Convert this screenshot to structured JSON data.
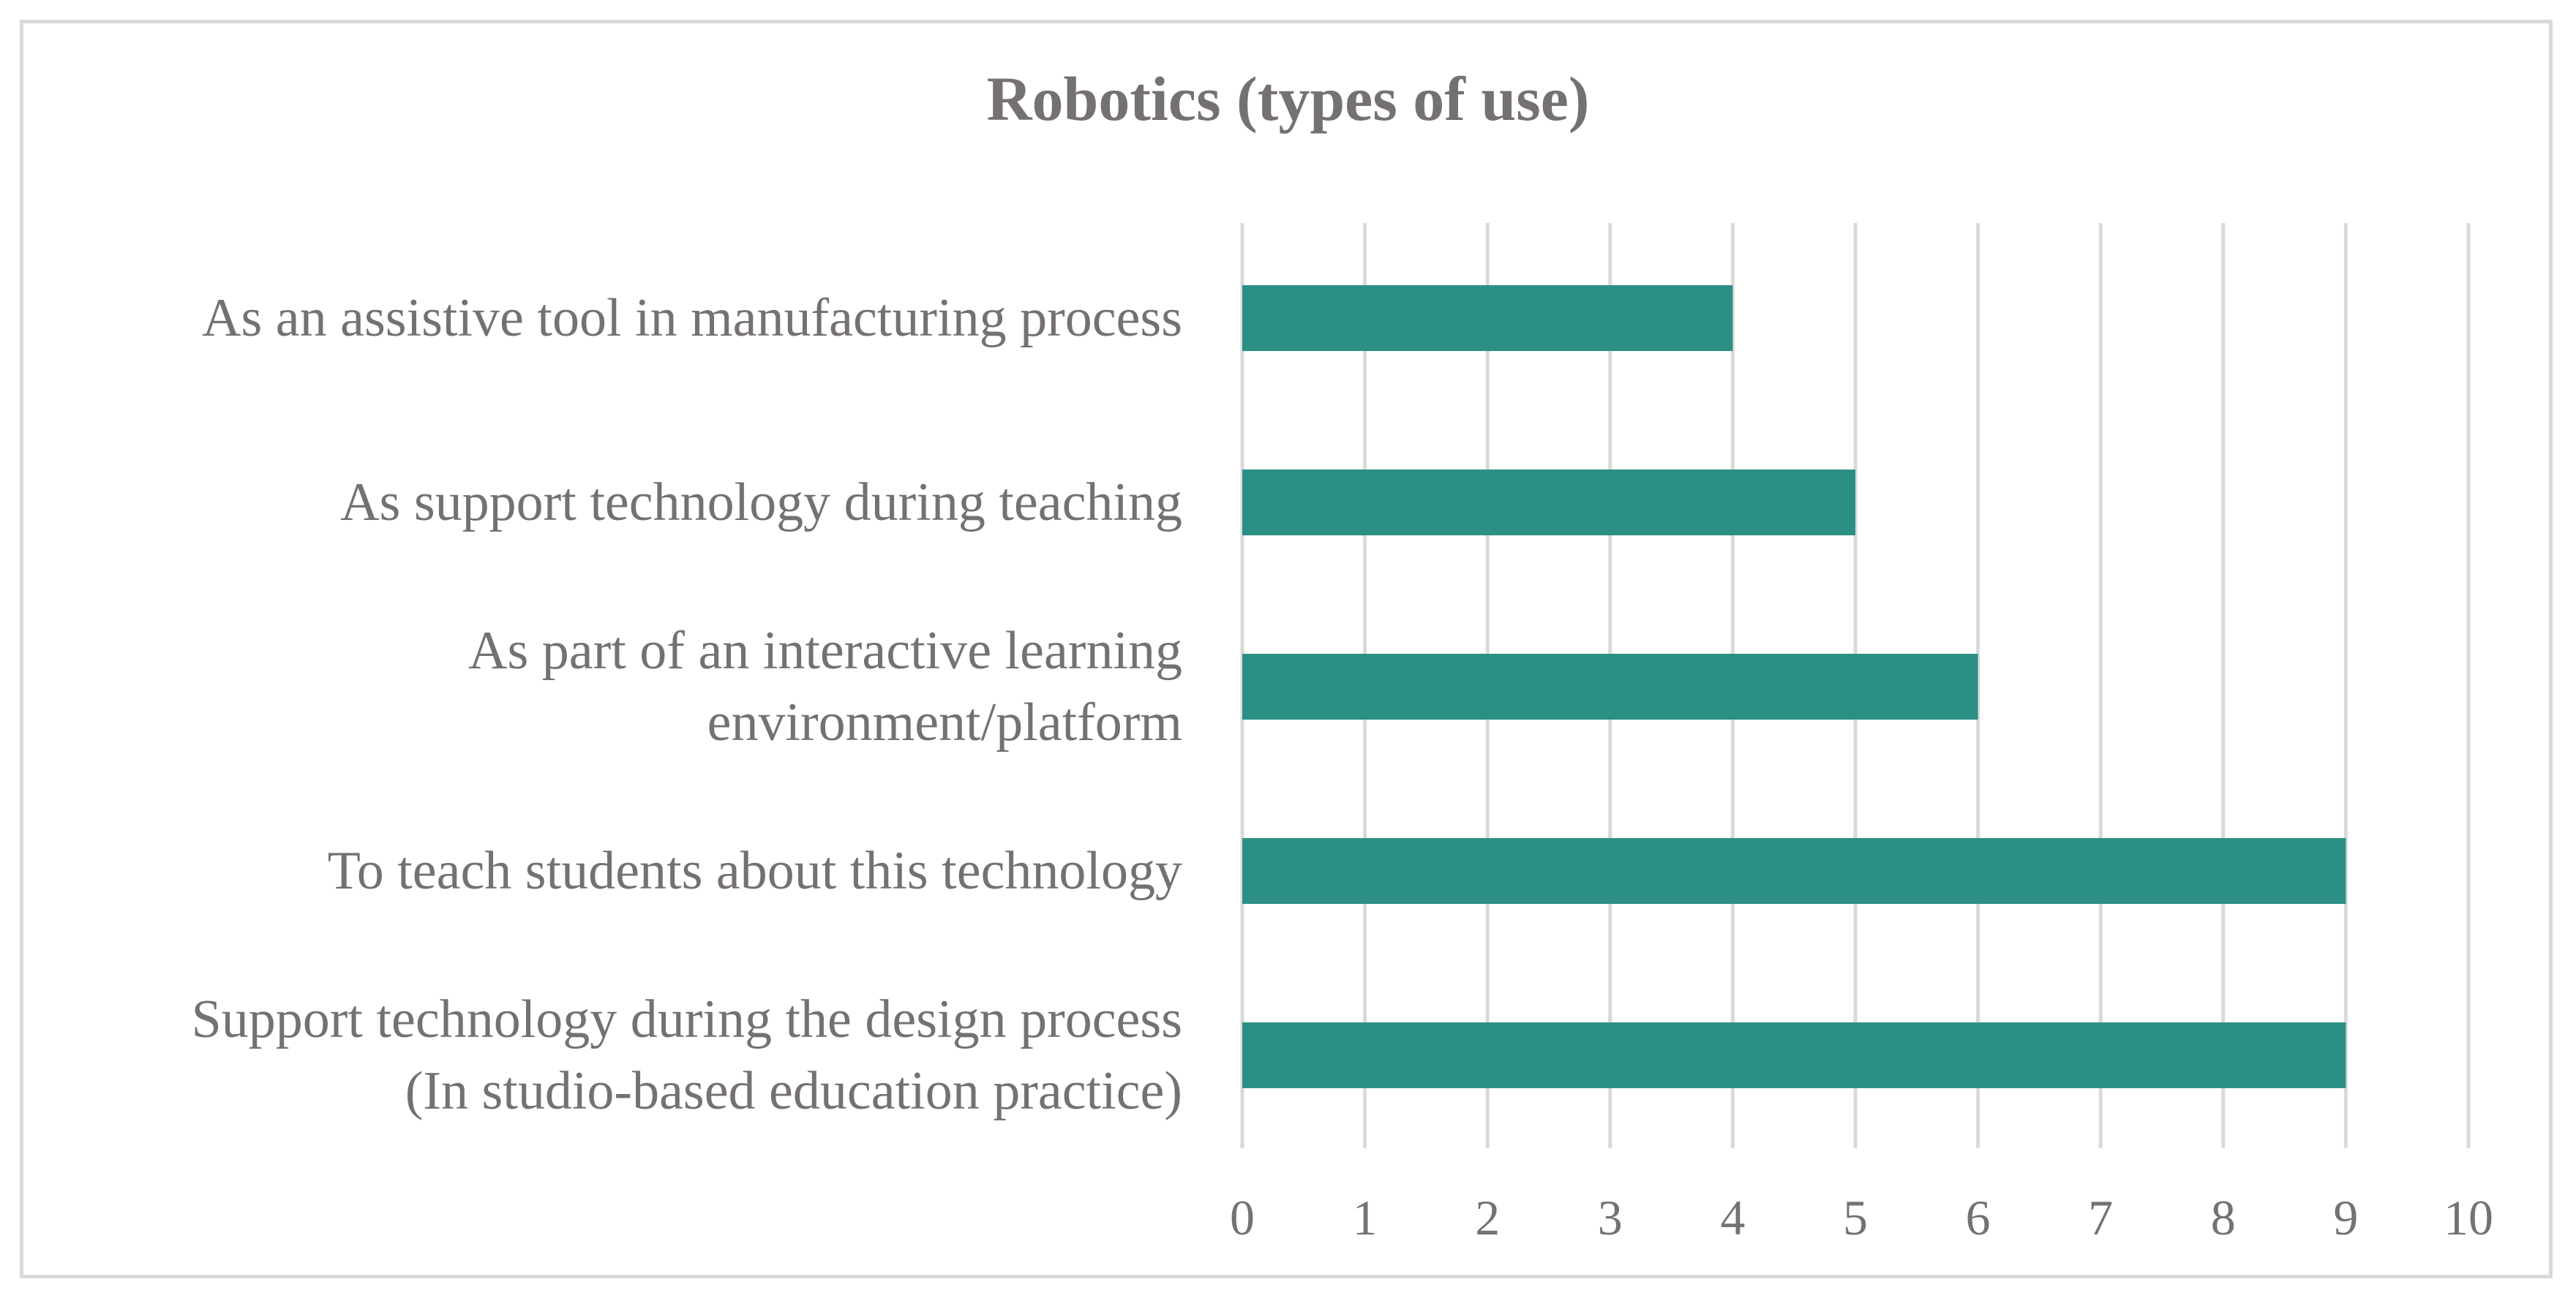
{
  "chart_data": {
    "type": "bar",
    "orientation": "horizontal",
    "title": "Robotics (types of use)",
    "xlabel": "",
    "ylabel": "",
    "categories": [
      [
        "As an assistive tool in manufacturing process"
      ],
      [
        "As support technology during teaching"
      ],
      [
        "As part of an interactive learning",
        "environment/platform"
      ],
      [
        "To teach students about this technology"
      ],
      [
        "Support technology during the design process",
        "(In studio-based education practice)"
      ]
    ],
    "values": [
      4,
      5,
      6,
      9,
      9
    ],
    "xlim": [
      0,
      10
    ],
    "ticks": [
      "0",
      "1",
      "2",
      "3",
      "4",
      "5",
      "6",
      "7",
      "8",
      "9",
      "10"
    ],
    "grid": true,
    "legend": "none",
    "bar_color": "#2b9083",
    "grid_color": "#d9d9d9",
    "text_color": "#767171"
  }
}
